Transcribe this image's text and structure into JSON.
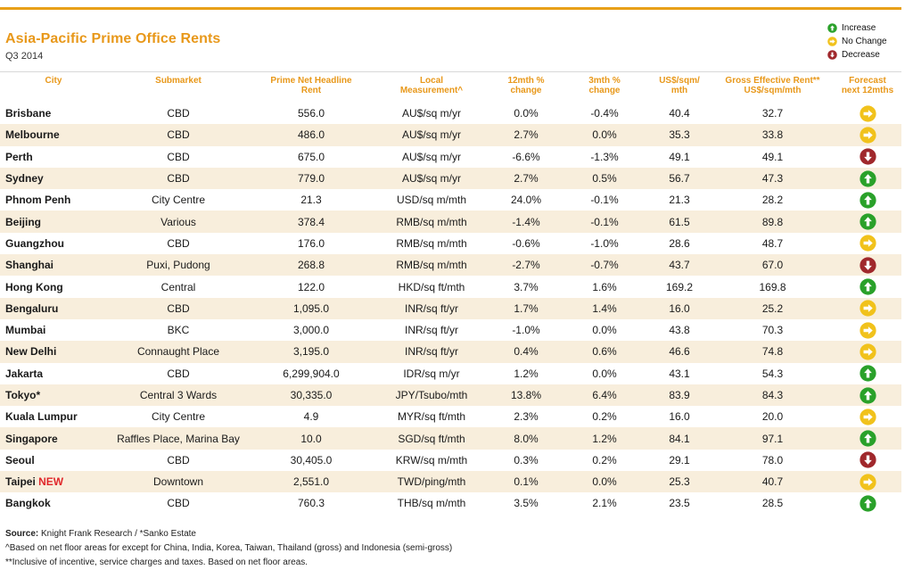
{
  "title": "Asia-Pacific Prime Office Rents",
  "subtitle": "Q3 2014",
  "colors": {
    "accent": "#e8981a",
    "increase": "#2aa12a",
    "no_change": "#f1c21c",
    "decrease": "#a0282c",
    "row_stripe": "#f8eedc"
  },
  "legend": [
    {
      "icon": "increase-arrow-icon",
      "label": "Increase"
    },
    {
      "icon": "no-change-arrow-icon",
      "label": "No Change"
    },
    {
      "icon": "decrease-arrow-icon",
      "label": "Decrease"
    }
  ],
  "columns": [
    [
      "City"
    ],
    [
      "Submarket"
    ],
    [
      "Prime Net Headline",
      "Rent"
    ],
    [
      "Local",
      "Measurement^"
    ],
    [
      "12mth %",
      "change"
    ],
    [
      "3mth %",
      "change"
    ],
    [
      "US$/sqm/",
      "mth"
    ],
    [
      "Gross Effective Rent**",
      "US$/sqm/mth"
    ],
    [
      "Forecast",
      "next 12mths"
    ]
  ],
  "rows": [
    {
      "city": "Brisbane",
      "submarket": "CBD",
      "rent": "556.0",
      "measure": "AU$/sq m/yr",
      "chg12": "0.0%",
      "chg3": "-0.4%",
      "usd": "40.4",
      "gross": "32.7",
      "forecast": "no-change"
    },
    {
      "city": "Melbourne",
      "submarket": "CBD",
      "rent": "486.0",
      "measure": "AU$/sq m/yr",
      "chg12": "2.7%",
      "chg3": "0.0%",
      "usd": "35.3",
      "gross": "33.8",
      "forecast": "no-change"
    },
    {
      "city": "Perth",
      "submarket": "CBD",
      "rent": "675.0",
      "measure": "AU$/sq m/yr",
      "chg12": "-6.6%",
      "chg3": "-1.3%",
      "usd": "49.1",
      "gross": "49.1",
      "forecast": "decrease"
    },
    {
      "city": "Sydney",
      "submarket": "CBD",
      "rent": "779.0",
      "measure": "AU$/sq m/yr",
      "chg12": "2.7%",
      "chg3": "0.5%",
      "usd": "56.7",
      "gross": "47.3",
      "forecast": "increase"
    },
    {
      "city": "Phnom Penh",
      "submarket": "City Centre",
      "rent": "21.3",
      "measure": "USD/sq m/mth",
      "chg12": "24.0%",
      "chg3": "-0.1%",
      "usd": "21.3",
      "gross": "28.2",
      "forecast": "increase"
    },
    {
      "city": "Beijing",
      "submarket": "Various",
      "rent": "378.4",
      "measure": "RMB/sq m/mth",
      "chg12": "-1.4%",
      "chg3": "-0.1%",
      "usd": "61.5",
      "gross": "89.8",
      "forecast": "increase"
    },
    {
      "city": "Guangzhou",
      "submarket": "CBD",
      "rent": "176.0",
      "measure": "RMB/sq m/mth",
      "chg12": "-0.6%",
      "chg3": "-1.0%",
      "usd": "28.6",
      "gross": "48.7",
      "forecast": "no-change"
    },
    {
      "city": "Shanghai",
      "submarket": "Puxi, Pudong",
      "rent": "268.8",
      "measure": "RMB/sq m/mth",
      "chg12": "-2.7%",
      "chg3": "-0.7%",
      "usd": "43.7",
      "gross": "67.0",
      "forecast": "decrease"
    },
    {
      "city": "Hong Kong",
      "submarket": "Central",
      "rent": "122.0",
      "measure": "HKD/sq ft/mth",
      "chg12": "3.7%",
      "chg3": "1.6%",
      "usd": "169.2",
      "gross": "169.8",
      "forecast": "increase"
    },
    {
      "city": "Bengaluru",
      "submarket": "CBD",
      "rent": "1,095.0",
      "measure": "INR/sq ft/yr",
      "chg12": "1.7%",
      "chg3": "1.4%",
      "usd": "16.0",
      "gross": "25.2",
      "forecast": "no-change"
    },
    {
      "city": "Mumbai",
      "submarket": "BKC",
      "rent": "3,000.0",
      "measure": "INR/sq ft/yr",
      "chg12": "-1.0%",
      "chg3": "0.0%",
      "usd": "43.8",
      "gross": "70.3",
      "forecast": "no-change"
    },
    {
      "city": "New Delhi",
      "submarket": "Connaught Place",
      "rent": "3,195.0",
      "measure": "INR/sq ft/yr",
      "chg12": "0.4%",
      "chg3": "0.6%",
      "usd": "46.6",
      "gross": "74.8",
      "forecast": "no-change"
    },
    {
      "city": "Jakarta",
      "submarket": "CBD",
      "rent": "6,299,904.0",
      "measure": "IDR/sq m/yr",
      "chg12": "1.2%",
      "chg3": "0.0%",
      "usd": "43.1",
      "gross": "54.3",
      "forecast": "increase"
    },
    {
      "city": "Tokyo*",
      "submarket": "Central 3 Wards",
      "rent": "30,335.0",
      "measure": "JPY/Tsubo/mth",
      "chg12": "13.8%",
      "chg3": "6.4%",
      "usd": "83.9",
      "gross": "84.3",
      "forecast": "increase"
    },
    {
      "city": "Kuala Lumpur",
      "submarket": "City Centre",
      "rent": "4.9",
      "measure": "MYR/sq ft/mth",
      "chg12": "2.3%",
      "chg3": "0.2%",
      "usd": "16.0",
      "gross": "20.0",
      "forecast": "no-change"
    },
    {
      "city": "Singapore",
      "submarket": "Raffles Place, Marina Bay",
      "rent": "10.0",
      "measure": "SGD/sq ft/mth",
      "chg12": "8.0%",
      "chg3": "1.2%",
      "usd": "84.1",
      "gross": "97.1",
      "forecast": "increase"
    },
    {
      "city": "Seoul",
      "submarket": "CBD",
      "rent": "30,405.0",
      "measure": "KRW/sq m/mth",
      "chg12": "0.3%",
      "chg3": "0.2%",
      "usd": "29.1",
      "gross": "78.0",
      "forecast": "decrease"
    },
    {
      "city": "Taipei",
      "city_tag": "NEW",
      "submarket": "Downtown",
      "rent": "2,551.0",
      "measure": "TWD/ping/mth",
      "chg12": "0.1%",
      "chg3": "0.0%",
      "usd": "25.3",
      "gross": "40.7",
      "forecast": "no-change"
    },
    {
      "city": "Bangkok",
      "submarket": "CBD",
      "rent": "760.3",
      "measure": "THB/sq m/mth",
      "chg12": "3.5%",
      "chg3": "2.1%",
      "usd": "23.5",
      "gross": "28.5",
      "forecast": "increase"
    }
  ],
  "footer": {
    "source_label": "Source:",
    "source_text": "Knight Frank Research / *Sanko Estate",
    "note1": "^Based on net floor areas for except for China, India, Korea, Taiwan, Thailand (gross) and Indonesia (semi-gross)",
    "note2": "**Inclusive of incentive, service charges and taxes. Based on net floor areas."
  }
}
